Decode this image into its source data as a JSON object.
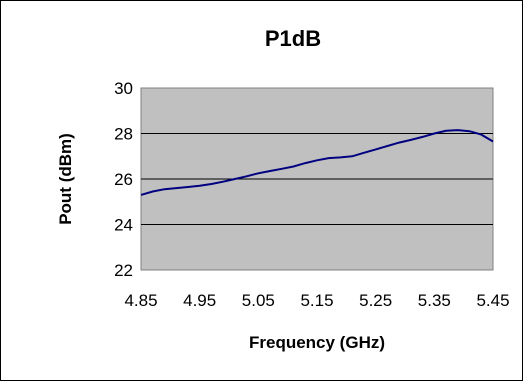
{
  "chart_data": {
    "type": "line",
    "title": "P1dB",
    "xlabel": "Frequency (GHz)",
    "ylabel": "Pout (dBm)",
    "x_ticks": [
      "4.85",
      "4.95",
      "5.05",
      "5.15",
      "5.25",
      "5.35",
      "5.45"
    ],
    "y_ticks": [
      "22",
      "24",
      "26",
      "28",
      "30"
    ],
    "xlim": [
      4.85,
      5.45
    ],
    "ylim": [
      22,
      30
    ],
    "grid": "horizontal",
    "legend": "none",
    "colors": {
      "plot_bg": "#c0c0c0",
      "line": "#000080",
      "grid": "#000000"
    },
    "series": [
      {
        "x": [
          4.85,
          4.87,
          4.89,
          4.91,
          4.93,
          4.95,
          4.97,
          4.99,
          5.01,
          5.03,
          5.05,
          5.07,
          5.09,
          5.11,
          5.13,
          5.15,
          5.17,
          5.19,
          5.21,
          5.23,
          5.25,
          5.27,
          5.29,
          5.31,
          5.33,
          5.35,
          5.37,
          5.39,
          5.41,
          5.43,
          5.45
        ],
        "y": [
          25.3,
          25.45,
          25.55,
          25.6,
          25.65,
          25.7,
          25.78,
          25.88,
          26.0,
          26.12,
          26.25,
          26.35,
          26.45,
          26.55,
          26.7,
          26.82,
          26.92,
          26.95,
          27.0,
          27.15,
          27.3,
          27.45,
          27.6,
          27.72,
          27.85,
          28.0,
          28.12,
          28.15,
          28.1,
          27.95,
          27.65
        ]
      }
    ]
  }
}
